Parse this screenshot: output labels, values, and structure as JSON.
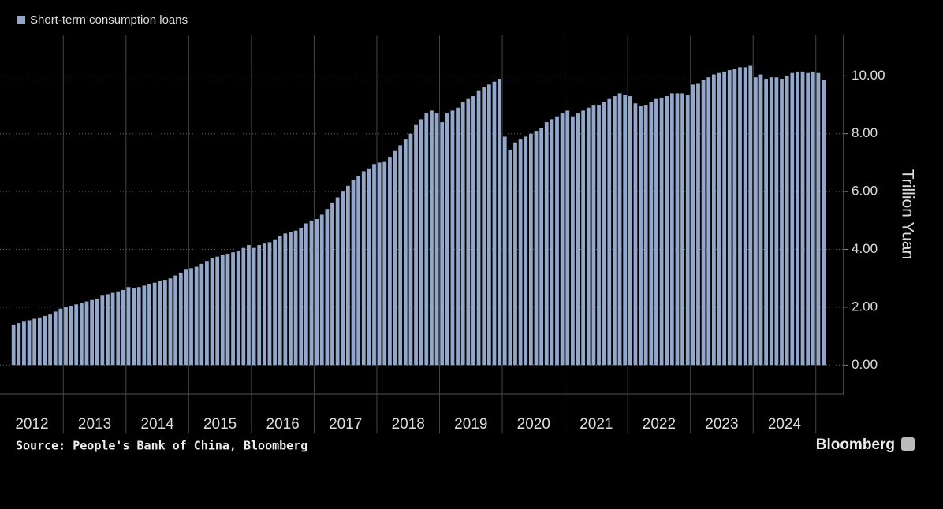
{
  "chart_data": {
    "type": "bar",
    "y_label": "Trillion Yuan",
    "source": "Source: People's Bank of China, Bloomberg",
    "credit": "Bloomberg",
    "categories": [
      null,
      null,
      null,
      null,
      "2012",
      null,
      null,
      null,
      null,
      null,
      null,
      null,
      null,
      null,
      null,
      null,
      "2013",
      null,
      null,
      null,
      null,
      null,
      null,
      null,
      null,
      null,
      null,
      null,
      "2014",
      null,
      null,
      null,
      null,
      null,
      null,
      null,
      null,
      null,
      null,
      null,
      "2015",
      null,
      null,
      null,
      null,
      null,
      null,
      null,
      null,
      null,
      null,
      null,
      "2016",
      null,
      null,
      null,
      null,
      null,
      null,
      null,
      null,
      null,
      null,
      null,
      "2017",
      null,
      null,
      null,
      null,
      null,
      null,
      null,
      null,
      null,
      null,
      null,
      "2018",
      null,
      null,
      null,
      null,
      null,
      null,
      null,
      null,
      null,
      null,
      null,
      "2019",
      null,
      null,
      null,
      null,
      null,
      null,
      null,
      null,
      null,
      null,
      null,
      "2020",
      null,
      null,
      null,
      null,
      null,
      null,
      null,
      null,
      null,
      null,
      null,
      "2021",
      null,
      null,
      null,
      null,
      null,
      null,
      null,
      null,
      null,
      null,
      null,
      "2022",
      null,
      null,
      null,
      null,
      null,
      null,
      null,
      null,
      null,
      null,
      null,
      "2023",
      null,
      null,
      null,
      null,
      null,
      null,
      null,
      null,
      null,
      null,
      null,
      "2024",
      null,
      null,
      null,
      null,
      null,
      null,
      null
    ],
    "series": [
      {
        "name": "Short-term consumption loans",
        "color": "#93a7cb",
        "values": [
          1.4,
          1.45,
          1.5,
          1.55,
          1.6,
          1.65,
          1.7,
          1.75,
          1.85,
          1.95,
          2.0,
          2.05,
          2.1,
          2.15,
          2.2,
          2.25,
          2.3,
          2.4,
          2.45,
          2.5,
          2.55,
          2.6,
          2.7,
          2.65,
          2.7,
          2.75,
          2.8,
          2.85,
          2.9,
          2.95,
          3.0,
          3.1,
          3.2,
          3.3,
          3.35,
          3.4,
          3.5,
          3.6,
          3.7,
          3.75,
          3.8,
          3.85,
          3.9,
          3.95,
          4.05,
          4.15,
          4.05,
          4.15,
          4.2,
          4.25,
          4.35,
          4.45,
          4.55,
          4.6,
          4.65,
          4.75,
          4.9,
          5.0,
          5.05,
          5.2,
          5.4,
          5.6,
          5.8,
          6.0,
          6.2,
          6.4,
          6.55,
          6.7,
          6.8,
          6.95,
          7.0,
          7.05,
          7.2,
          7.4,
          7.6,
          7.8,
          8.0,
          8.3,
          8.5,
          8.7,
          8.8,
          8.7,
          8.4,
          8.7,
          8.8,
          8.9,
          9.1,
          9.2,
          9.3,
          9.5,
          9.6,
          9.7,
          9.8,
          9.9,
          7.9,
          7.45,
          7.7,
          7.8,
          7.9,
          8.0,
          8.1,
          8.2,
          8.4,
          8.5,
          8.6,
          8.7,
          8.8,
          8.6,
          8.7,
          8.8,
          8.9,
          9.0,
          9.0,
          9.1,
          9.2,
          9.3,
          9.4,
          9.35,
          9.3,
          9.05,
          8.95,
          9.0,
          9.1,
          9.2,
          9.25,
          9.3,
          9.4,
          9.4,
          9.4,
          9.35,
          9.7,
          9.75,
          9.85,
          9.95,
          10.05,
          10.1,
          10.15,
          10.2,
          10.25,
          10.3,
          10.3,
          10.35,
          9.95,
          10.05,
          9.9,
          9.95,
          9.95,
          9.9,
          10.0,
          10.1,
          10.15,
          10.15,
          10.1,
          10.15,
          10.1,
          9.85
        ]
      }
    ],
    "ylim": [
      -1,
      11.4
    ],
    "yticks": [
      {
        "value": 0,
        "label": "0.00"
      },
      {
        "value": 2,
        "label": "2.00"
      },
      {
        "value": 4,
        "label": "4.00"
      },
      {
        "value": 6,
        "label": "6.00"
      },
      {
        "value": 8,
        "label": "8.00"
      },
      {
        "value": 10,
        "label": "10.00"
      }
    ],
    "grid": true
  }
}
